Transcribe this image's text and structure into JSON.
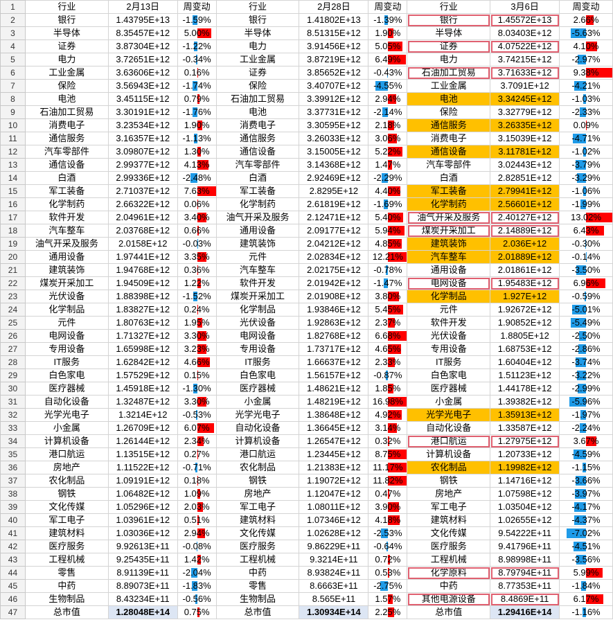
{
  "colors": {
    "highlight": "#ffc000",
    "box": "#e06070",
    "bar_positive": "#ff0000",
    "bar_negative": "#1f9be8"
  },
  "header": {
    "row_number": "1",
    "industry": "行业",
    "change": "周变动",
    "dates": [
      "2月13日",
      "2月28日",
      "3月6日"
    ]
  },
  "groups": [
    {
      "rows": [
        {
          "n": "2",
          "ind": "银行",
          "val": "1.43795E+13",
          "chg": "-1.59%",
          "pct": -1.59
        },
        {
          "n": "3",
          "ind": "半导体",
          "val": "8.35457E+12",
          "chg": "5.00%",
          "pct": 5.0
        },
        {
          "n": "4",
          "ind": "证券",
          "val": "3.87304E+12",
          "chg": "-1.22%",
          "pct": -1.22
        },
        {
          "n": "5",
          "ind": "电力",
          "val": "3.72651E+12",
          "chg": "-0.34%",
          "pct": -0.34
        },
        {
          "n": "6",
          "ind": "工业金属",
          "val": "3.63606E+12",
          "chg": "0.16%",
          "pct": 0.16
        },
        {
          "n": "7",
          "ind": "保险",
          "val": "3.56943E+12",
          "chg": "-1.74%",
          "pct": -1.74
        },
        {
          "n": "8",
          "ind": "电池",
          "val": "3.45115E+12",
          "chg": "0.79%",
          "pct": 0.79
        },
        {
          "n": "9",
          "ind": "石油加工贸易",
          "val": "3.30191E+12",
          "chg": "-1.76%",
          "pct": -1.76
        },
        {
          "n": "10",
          "ind": "消费电子",
          "val": "3.23534E+12",
          "chg": "1.90%",
          "pct": 1.9
        },
        {
          "n": "11",
          "ind": "通信服务",
          "val": "3.16357E+12",
          "chg": "-1.13%",
          "pct": -1.13
        },
        {
          "n": "12",
          "ind": "汽车零部件",
          "val": "3.09807E+12",
          "chg": "1.30%",
          "pct": 1.3
        },
        {
          "n": "13",
          "ind": "通信设备",
          "val": "2.99377E+12",
          "chg": "4.13%",
          "pct": 4.13
        },
        {
          "n": "14",
          "ind": "白酒",
          "val": "2.99336E+12",
          "chg": "-2.48%",
          "pct": -2.48
        },
        {
          "n": "15",
          "ind": "军工装备",
          "val": "2.71037E+12",
          "chg": "7.63%",
          "pct": 7.63
        },
        {
          "n": "16",
          "ind": "化学制药",
          "val": "2.66322E+12",
          "chg": "0.06%",
          "pct": 0.06
        },
        {
          "n": "17",
          "ind": "软件开发",
          "val": "2.04961E+12",
          "chg": "3.40%",
          "pct": 3.4
        },
        {
          "n": "18",
          "ind": "汽车整车",
          "val": "2.03768E+12",
          "chg": "0.66%",
          "pct": 0.66
        },
        {
          "n": "19",
          "ind": "油气开采及服务",
          "val": "2.0158E+12",
          "chg": "-0.03%",
          "pct": -0.03
        },
        {
          "n": "20",
          "ind": "通用设备",
          "val": "1.97441E+12",
          "chg": "3.35%",
          "pct": 3.35
        },
        {
          "n": "21",
          "ind": "建筑装饰",
          "val": "1.94768E+12",
          "chg": "0.36%",
          "pct": 0.36
        },
        {
          "n": "22",
          "ind": "煤炭开采加工",
          "val": "1.94509E+12",
          "chg": "1.22%",
          "pct": 1.22
        },
        {
          "n": "23",
          "ind": "光伏设备",
          "val": "1.88398E+12",
          "chg": "-1.52%",
          "pct": -1.52
        },
        {
          "n": "24",
          "ind": "化学制品",
          "val": "1.83827E+12",
          "chg": "0.24%",
          "pct": 0.24
        },
        {
          "n": "25",
          "ind": "元件",
          "val": "1.80763E+12",
          "chg": "1.95%",
          "pct": 1.95
        },
        {
          "n": "26",
          "ind": "电网设备",
          "val": "1.71327E+12",
          "chg": "3.30%",
          "pct": 3.3
        },
        {
          "n": "27",
          "ind": "专用设备",
          "val": "1.65998E+12",
          "chg": "3.23%",
          "pct": 3.23
        },
        {
          "n": "28",
          "ind": "IT服务",
          "val": "1.62842E+12",
          "chg": "4.66%",
          "pct": 4.66
        },
        {
          "n": "29",
          "ind": "白色家电",
          "val": "1.57529E+12",
          "chg": "0.15%",
          "pct": 0.15
        },
        {
          "n": "30",
          "ind": "医疗器械",
          "val": "1.45918E+12",
          "chg": "-1.30%",
          "pct": -1.3
        },
        {
          "n": "31",
          "ind": "自动化设备",
          "val": "1.32487E+12",
          "chg": "3.30%",
          "pct": 3.3
        },
        {
          "n": "32",
          "ind": "光学光电子",
          "val": "1.3214E+12",
          "chg": "-0.53%",
          "pct": -0.53
        },
        {
          "n": "33",
          "ind": "小金属",
          "val": "1.26709E+12",
          "chg": "6.07%",
          "pct": 6.07
        },
        {
          "n": "34",
          "ind": "计算机设备",
          "val": "1.26144E+12",
          "chg": "2.34%",
          "pct": 2.34
        },
        {
          "n": "35",
          "ind": "港口航运",
          "val": "1.13515E+12",
          "chg": "0.27%",
          "pct": 0.27
        },
        {
          "n": "36",
          "ind": "房地产",
          "val": "1.11522E+12",
          "chg": "-0.71%",
          "pct": -0.71
        },
        {
          "n": "37",
          "ind": "农化制品",
          "val": "1.09191E+12",
          "chg": "0.18%",
          "pct": 0.18
        },
        {
          "n": "38",
          "ind": "钢铁",
          "val": "1.06482E+12",
          "chg": "1.09%",
          "pct": 1.09
        },
        {
          "n": "39",
          "ind": "文化传媒",
          "val": "1.05296E+12",
          "chg": "2.03%",
          "pct": 2.03
        },
        {
          "n": "40",
          "ind": "军工电子",
          "val": "1.03961E+12",
          "chg": "0.51%",
          "pct": 0.51
        },
        {
          "n": "41",
          "ind": "建筑材料",
          "val": "1.03036E+12",
          "chg": "2.94%",
          "pct": 2.94
        },
        {
          "n": "42",
          "ind": "医疗服务",
          "val": "9.92613E+11",
          "chg": "-0.08%",
          "pct": -0.08
        },
        {
          "n": "43",
          "ind": "工程机械",
          "val": "9.25435E+11",
          "chg": "1.42%",
          "pct": 1.42
        },
        {
          "n": "44",
          "ind": "零售",
          "val": "8.91139E+11",
          "chg": "-2.04%",
          "pct": -2.04
        },
        {
          "n": "45",
          "ind": "中药",
          "val": "8.89073E+11",
          "chg": "-1.83%",
          "pct": -1.83
        },
        {
          "n": "46",
          "ind": "生物制品",
          "val": "8.43234E+11",
          "chg": "-0.56%",
          "pct": -0.56
        },
        {
          "n": "47",
          "ind": "总市值",
          "val": "1.28048E+14",
          "chg": "0.75%",
          "pct": 0.75
        }
      ]
    },
    {
      "rows": [
        {
          "ind": "银行",
          "val": "1.41802E+13",
          "chg": "-1.39%",
          "pct": -1.39
        },
        {
          "ind": "半导体",
          "val": "8.51315E+12",
          "chg": "1.90%",
          "pct": 1.9
        },
        {
          "ind": "电力",
          "val": "3.91456E+12",
          "chg": "5.05%",
          "pct": 5.05
        },
        {
          "ind": "工业金属",
          "val": "3.87219E+12",
          "chg": "6.49%",
          "pct": 6.49
        },
        {
          "ind": "证券",
          "val": "3.85652E+12",
          "chg": "-0.43%",
          "pct": -0.43
        },
        {
          "ind": "保险",
          "val": "3.40707E+12",
          "chg": "-4.55%",
          "pct": -4.55
        },
        {
          "ind": "石油加工贸易",
          "val": "3.39912E+12",
          "chg": "2.94%",
          "pct": 2.94
        },
        {
          "ind": "电池",
          "val": "3.37731E+12",
          "chg": "-2.14%",
          "pct": -2.14
        },
        {
          "ind": "消费电子",
          "val": "3.30595E+12",
          "chg": "2.18%",
          "pct": 2.18
        },
        {
          "ind": "通信服务",
          "val": "3.26033E+12",
          "chg": "3.06%",
          "pct": 3.06
        },
        {
          "ind": "通信设备",
          "val": "3.15005E+12",
          "chg": "5.22%",
          "pct": 5.22
        },
        {
          "ind": "汽车零部件",
          "val": "3.14368E+12",
          "chg": "1.47%",
          "pct": 1.47
        },
        {
          "ind": "白酒",
          "val": "2.92469E+12",
          "chg": "-2.29%",
          "pct": -2.29
        },
        {
          "ind": "军工装备",
          "val": "2.8295E+12",
          "chg": "4.40%",
          "pct": 4.4
        },
        {
          "ind": "化学制药",
          "val": "2.61819E+12",
          "chg": "-1.69%",
          "pct": -1.69
        },
        {
          "ind": "油气开采及服务",
          "val": "2.12471E+12",
          "chg": "5.40%",
          "pct": 5.4
        },
        {
          "ind": "通用设备",
          "val": "2.09177E+12",
          "chg": "5.94%",
          "pct": 5.94
        },
        {
          "ind": "建筑装饰",
          "val": "2.04212E+12",
          "chg": "4.85%",
          "pct": 4.85
        },
        {
          "ind": "元件",
          "val": "2.02834E+12",
          "chg": "12.21%",
          "pct": 12.21
        },
        {
          "ind": "汽车整车",
          "val": "2.02175E+12",
          "chg": "-0.78%",
          "pct": -0.78
        },
        {
          "ind": "软件开发",
          "val": "2.01942E+12",
          "chg": "-1.47%",
          "pct": -1.47
        },
        {
          "ind": "煤炭开采加工",
          "val": "2.01908E+12",
          "chg": "3.80%",
          "pct": 3.8
        },
        {
          "ind": "化学制品",
          "val": "1.93846E+12",
          "chg": "5.45%",
          "pct": 5.45
        },
        {
          "ind": "光伏设备",
          "val": "1.92863E+12",
          "chg": "2.37%",
          "pct": 2.37
        },
        {
          "ind": "电网设备",
          "val": "1.82768E+12",
          "chg": "6.68%",
          "pct": 6.68
        },
        {
          "ind": "专用设备",
          "val": "1.73717E+12",
          "chg": "4.65%",
          "pct": 4.65
        },
        {
          "ind": "IT服务",
          "val": "1.66637E+12",
          "chg": "2.33%",
          "pct": 2.33
        },
        {
          "ind": "白色家电",
          "val": "1.56157E+12",
          "chg": "-0.87%",
          "pct": -0.87
        },
        {
          "ind": "医疗器械",
          "val": "1.48621E+12",
          "chg": "1.85%",
          "pct": 1.85
        },
        {
          "ind": "小金属",
          "val": "1.48219E+12",
          "chg": "16.98%",
          "pct": 16.98
        },
        {
          "ind": "光学光电子",
          "val": "1.38648E+12",
          "chg": "4.92%",
          "pct": 4.92
        },
        {
          "ind": "自动化设备",
          "val": "1.36645E+12",
          "chg": "3.14%",
          "pct": 3.14
        },
        {
          "ind": "计算机设备",
          "val": "1.26547E+12",
          "chg": "0.32%",
          "pct": 0.32
        },
        {
          "ind": "港口航运",
          "val": "1.23445E+12",
          "chg": "8.75%",
          "pct": 8.75
        },
        {
          "ind": "农化制品",
          "val": "1.21383E+12",
          "chg": "11.17%",
          "pct": 11.17
        },
        {
          "ind": "钢铁",
          "val": "1.19072E+12",
          "chg": "11.82%",
          "pct": 11.82
        },
        {
          "ind": "房地产",
          "val": "1.12047E+12",
          "chg": "0.47%",
          "pct": 0.47
        },
        {
          "ind": "军工电子",
          "val": "1.08011E+12",
          "chg": "3.90%",
          "pct": 3.9
        },
        {
          "ind": "建筑材料",
          "val": "1.07346E+12",
          "chg": "4.18%",
          "pct": 4.18
        },
        {
          "ind": "文化传媒",
          "val": "1.02628E+12",
          "chg": "-2.53%",
          "pct": -2.53
        },
        {
          "ind": "医疗服务",
          "val": "9.86229E+11",
          "chg": "-0.64%",
          "pct": -0.64
        },
        {
          "ind": "工程机械",
          "val": "9.3214E+11",
          "chg": "0.72%",
          "pct": 0.72
        },
        {
          "ind": "中药",
          "val": "8.93824E+11",
          "chg": "0.53%",
          "pct": 0.53
        },
        {
          "ind": "零售",
          "val": "8.6663E+11",
          "chg": "-2.75%",
          "pct": -2.75
        },
        {
          "ind": "生物制品",
          "val": "8.565E+11",
          "chg": "1.57%",
          "pct": 1.57
        },
        {
          "ind": "总市值",
          "val": "1.30934E+14",
          "chg": "2.25%",
          "pct": 2.25
        }
      ]
    },
    {
      "rows": [
        {
          "ind": "银行",
          "val": "1.45572E+13",
          "chg": "2.66%",
          "pct": 2.66,
          "boxed": true
        },
        {
          "ind": "半导体",
          "val": "8.03403E+12",
          "chg": "-5.63%",
          "pct": -5.63
        },
        {
          "ind": "证券",
          "val": "4.07522E+12",
          "chg": "4.10%",
          "pct": 4.1,
          "boxed": true
        },
        {
          "ind": "电力",
          "val": "3.74215E+12",
          "chg": "-2.97%",
          "pct": -2.97
        },
        {
          "ind": "石油加工贸易",
          "val": "3.71633E+12",
          "chg": "9.38%",
          "pct": 9.38,
          "boxed": true
        },
        {
          "ind": "工业金属",
          "val": "3.7091E+12",
          "chg": "-4.21%",
          "pct": -4.21
        },
        {
          "ind": "电池",
          "val": "3.34245E+12",
          "chg": "-1.03%",
          "pct": -1.03,
          "hl": true
        },
        {
          "ind": "保险",
          "val": "3.32779E+12",
          "chg": "-2.33%",
          "pct": -2.33
        },
        {
          "ind": "通信服务",
          "val": "3.26335E+12",
          "chg": "0.09%",
          "pct": 0.09,
          "hl": true
        },
        {
          "ind": "消费电子",
          "val": "3.15039E+12",
          "chg": "-4.71%",
          "pct": -4.71
        },
        {
          "ind": "通信设备",
          "val": "3.11781E+12",
          "chg": "-1.02%",
          "pct": -1.02,
          "hl": true
        },
        {
          "ind": "汽车零部件",
          "val": "3.02443E+12",
          "chg": "-3.79%",
          "pct": -3.79
        },
        {
          "ind": "白酒",
          "val": "2.82851E+12",
          "chg": "-3.29%",
          "pct": -3.29
        },
        {
          "ind": "军工装备",
          "val": "2.79941E+12",
          "chg": "-1.06%",
          "pct": -1.06,
          "hl": true
        },
        {
          "ind": "化学制药",
          "val": "2.56601E+12",
          "chg": "-1.99%",
          "pct": -1.99,
          "hl": true
        },
        {
          "ind": "油气开采及服务",
          "val": "2.40127E+12",
          "chg": "13.02%",
          "pct": 13.02,
          "boxed": true
        },
        {
          "ind": "煤炭开采加工",
          "val": "2.14889E+12",
          "chg": "6.43%",
          "pct": 6.43,
          "boxed": true
        },
        {
          "ind": "建筑装饰",
          "val": "2.036E+12",
          "chg": "-0.30%",
          "pct": -0.3,
          "hl": true
        },
        {
          "ind": "汽车整车",
          "val": "2.01889E+12",
          "chg": "-0.14%",
          "pct": -0.14,
          "hl": true
        },
        {
          "ind": "通用设备",
          "val": "2.01861E+12",
          "chg": "-3.50%",
          "pct": -3.5
        },
        {
          "ind": "电网设备",
          "val": "1.95483E+12",
          "chg": "6.96%",
          "pct": 6.96,
          "boxed": true
        },
        {
          "ind": "化学制品",
          "val": "1.927E+12",
          "chg": "-0.59%",
          "pct": -0.59,
          "hl": true
        },
        {
          "ind": "元件",
          "val": "1.92672E+12",
          "chg": "-5.01%",
          "pct": -5.01
        },
        {
          "ind": "软件开发",
          "val": "1.90852E+12",
          "chg": "-5.49%",
          "pct": -5.49
        },
        {
          "ind": "光伏设备",
          "val": "1.8805E+12",
          "chg": "-2.50%",
          "pct": -2.5
        },
        {
          "ind": "专用设备",
          "val": "1.68753E+12",
          "chg": "-2.86%",
          "pct": -2.86
        },
        {
          "ind": "IT服务",
          "val": "1.60404E+12",
          "chg": "-3.74%",
          "pct": -3.74
        },
        {
          "ind": "白色家电",
          "val": "1.51123E+12",
          "chg": "-3.22%",
          "pct": -3.22
        },
        {
          "ind": "医疗器械",
          "val": "1.44178E+12",
          "chg": "-2.99%",
          "pct": -2.99
        },
        {
          "ind": "小金属",
          "val": "1.39382E+12",
          "chg": "-5.96%",
          "pct": -5.96
        },
        {
          "ind": "光学光电子",
          "val": "1.35913E+12",
          "chg": "-1.97%",
          "pct": -1.97,
          "hl": true
        },
        {
          "ind": "自动化设备",
          "val": "1.33587E+12",
          "chg": "-2.24%",
          "pct": -2.24
        },
        {
          "ind": "港口航运",
          "val": "1.27975E+12",
          "chg": "3.67%",
          "pct": 3.67,
          "boxed": true
        },
        {
          "ind": "计算机设备",
          "val": "1.20733E+12",
          "chg": "-4.59%",
          "pct": -4.59
        },
        {
          "ind": "农化制品",
          "val": "1.19982E+12",
          "chg": "-1.15%",
          "pct": -1.15,
          "hl": true
        },
        {
          "ind": "钢铁",
          "val": "1.14716E+12",
          "chg": "-3.66%",
          "pct": -3.66
        },
        {
          "ind": "房地产",
          "val": "1.07598E+12",
          "chg": "-3.97%",
          "pct": -3.97
        },
        {
          "ind": "军工电子",
          "val": "1.03504E+12",
          "chg": "-4.17%",
          "pct": -4.17
        },
        {
          "ind": "建筑材料",
          "val": "1.02655E+12",
          "chg": "-4.37%",
          "pct": -4.37
        },
        {
          "ind": "文化传媒",
          "val": "9.54222E+11",
          "chg": "-7.02%",
          "pct": -7.02
        },
        {
          "ind": "医疗服务",
          "val": "9.41796E+11",
          "chg": "-4.51%",
          "pct": -4.51
        },
        {
          "ind": "工程机械",
          "val": "8.98998E+11",
          "chg": "-3.56%",
          "pct": -3.56
        },
        {
          "ind": "化学原料",
          "val": "8.79794E+11",
          "chg": "5.99%",
          "pct": 5.99,
          "boxed": true
        },
        {
          "ind": "中药",
          "val": "8.77353E+11",
          "chg": "-1.84%",
          "pct": -1.84
        },
        {
          "ind": "其他电源设备",
          "val": "8.4869E+11",
          "chg": "6.17%",
          "pct": 6.17,
          "boxed": true
        },
        {
          "ind": "总市值",
          "val": "1.29416E+14",
          "chg": "-1.16%",
          "pct": -1.16
        }
      ]
    }
  ]
}
